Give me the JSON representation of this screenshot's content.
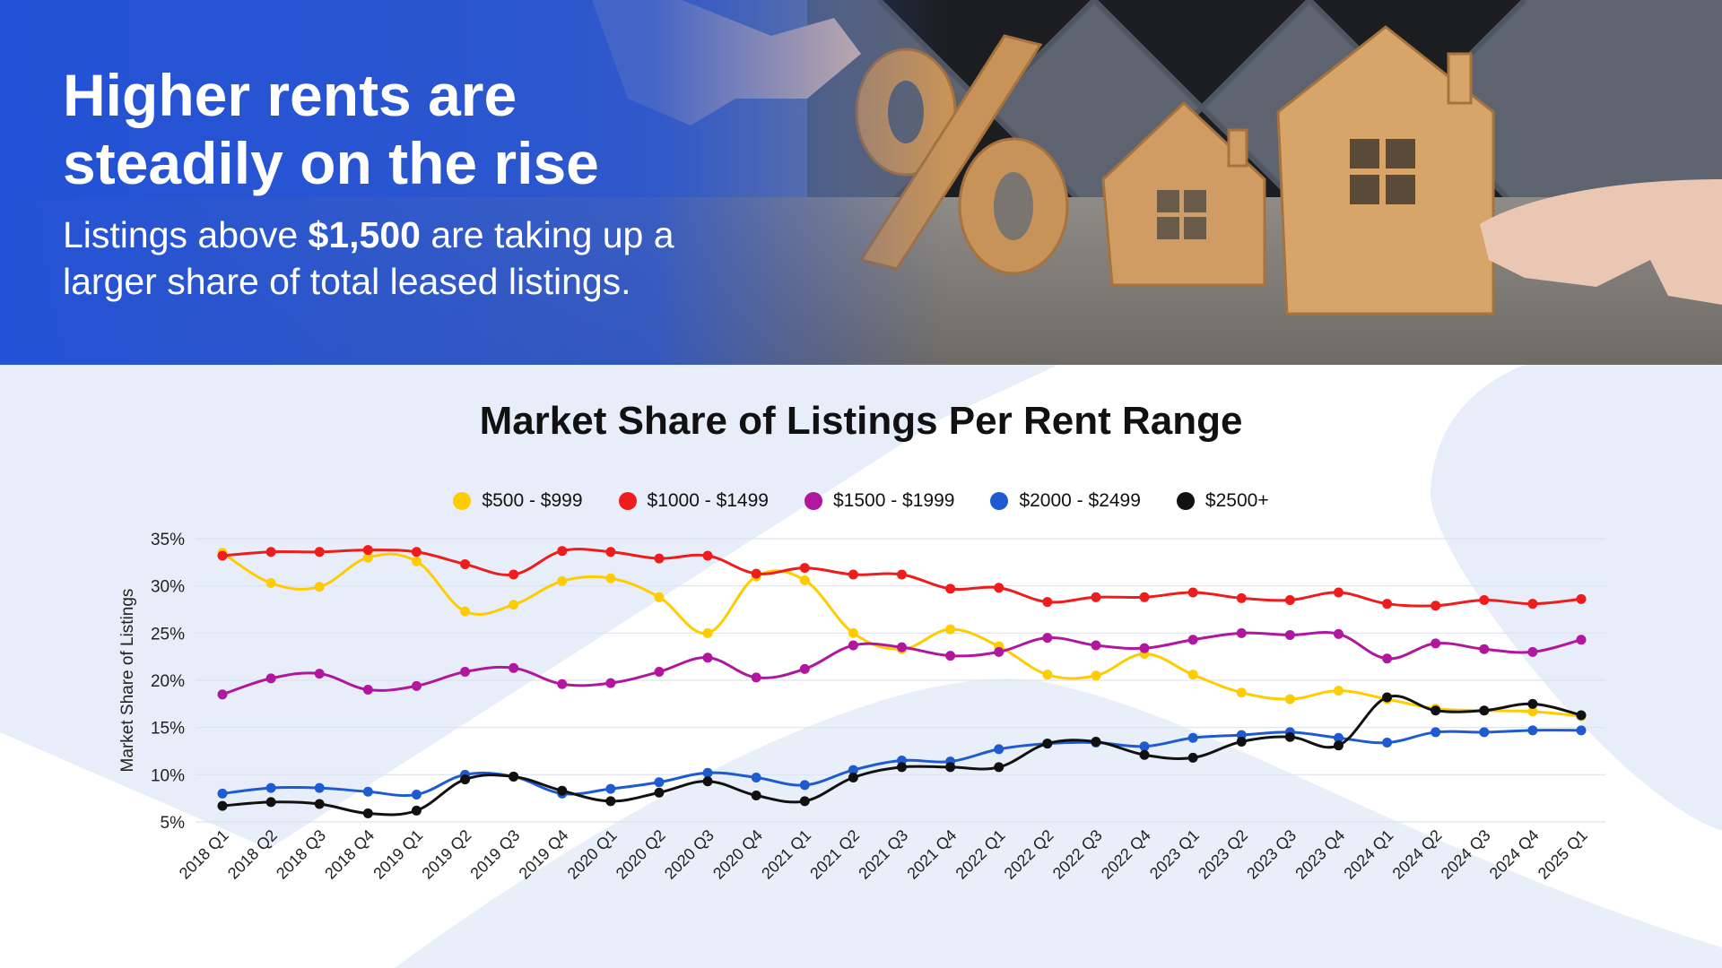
{
  "hero": {
    "title": "Higher rents are steadily on the rise",
    "subtitle_before": "Listings above ",
    "subtitle_bold": "$1,500",
    "subtitle_after": " are taking up a larger share of total leased listings."
  },
  "chart_data": {
    "type": "line",
    "title": "Market Share of Listings Per Rent Range",
    "ylabel": "Market Share of Listings",
    "xlabel": "",
    "ylim": [
      5,
      35
    ],
    "yticks": [
      "5%",
      "10%",
      "15%",
      "20%",
      "25%",
      "30%",
      "35%"
    ],
    "ytick_values": [
      5,
      10,
      15,
      20,
      25,
      30,
      35
    ],
    "grid": true,
    "legend_position": "top-center",
    "categories": [
      "2018 Q1",
      "2018 Q2",
      "2018 Q3",
      "2018 Q4",
      "2019 Q1",
      "2019 Q2",
      "2019 Q3",
      "2019 Q4",
      "2020 Q1",
      "2020 Q2",
      "2020 Q3",
      "2020 Q4",
      "2021 Q1",
      "2021 Q2",
      "2021 Q3",
      "2021 Q4",
      "2022 Q1",
      "2022 Q2",
      "2022 Q3",
      "2022 Q4",
      "2023 Q1",
      "2023 Q2",
      "2023 Q3",
      "2023 Q4",
      "2024 Q1",
      "2024 Q2",
      "2024 Q3",
      "2024 Q4",
      "2025 Q1"
    ],
    "series": [
      {
        "name": "$500 - $999",
        "color": "#FFCC00",
        "values": [
          33.5,
          30.3,
          29.9,
          33.0,
          32.6,
          27.3,
          28.0,
          30.5,
          30.8,
          28.8,
          25.0,
          31.0,
          30.6,
          25.0,
          23.3,
          25.4,
          23.6,
          20.6,
          20.5,
          22.8,
          20.6,
          18.7,
          18.0,
          18.9,
          18.0,
          17.0,
          16.8,
          16.7,
          16.2
        ]
      },
      {
        "name": "$1000 - $1499",
        "color": "#EE1C1C",
        "values": [
          33.2,
          33.6,
          33.6,
          33.8,
          33.6,
          32.3,
          31.2,
          33.7,
          33.6,
          32.9,
          33.2,
          31.3,
          31.9,
          31.2,
          31.2,
          29.7,
          29.8,
          28.3,
          28.8,
          28.8,
          29.3,
          28.7,
          28.5,
          29.3,
          28.1,
          27.9,
          28.5,
          28.1,
          28.6
        ]
      },
      {
        "name": "$1500 - $1999",
        "color": "#B0169E",
        "values": [
          18.5,
          20.2,
          20.7,
          19.0,
          19.4,
          20.9,
          21.3,
          19.6,
          19.7,
          20.9,
          22.4,
          20.3,
          21.2,
          23.7,
          23.5,
          22.6,
          23.0,
          24.5,
          23.7,
          23.4,
          24.3,
          25.0,
          24.8,
          24.9,
          22.3,
          23.9,
          23.3,
          23.0,
          24.3
        ]
      },
      {
        "name": "$2000 - $2499",
        "color": "#1E5BD0",
        "values": [
          8.0,
          8.6,
          8.6,
          8.2,
          7.9,
          10.0,
          9.8,
          8.0,
          8.5,
          9.2,
          10.2,
          9.7,
          8.9,
          10.5,
          11.5,
          11.4,
          12.7,
          13.3,
          13.4,
          13.0,
          13.9,
          14.2,
          14.5,
          13.9,
          13.4,
          14.5,
          14.5,
          14.7,
          14.7
        ]
      },
      {
        "name": "$2500+",
        "color": "#111111",
        "values": [
          6.7,
          7.1,
          6.9,
          5.9,
          6.2,
          9.5,
          9.8,
          8.3,
          7.2,
          8.1,
          9.3,
          7.8,
          7.2,
          9.7,
          10.8,
          10.8,
          10.8,
          13.3,
          13.5,
          12.1,
          11.8,
          13.5,
          14.0,
          13.1,
          18.2,
          16.8,
          16.8,
          17.5,
          16.3
        ]
      }
    ]
  }
}
